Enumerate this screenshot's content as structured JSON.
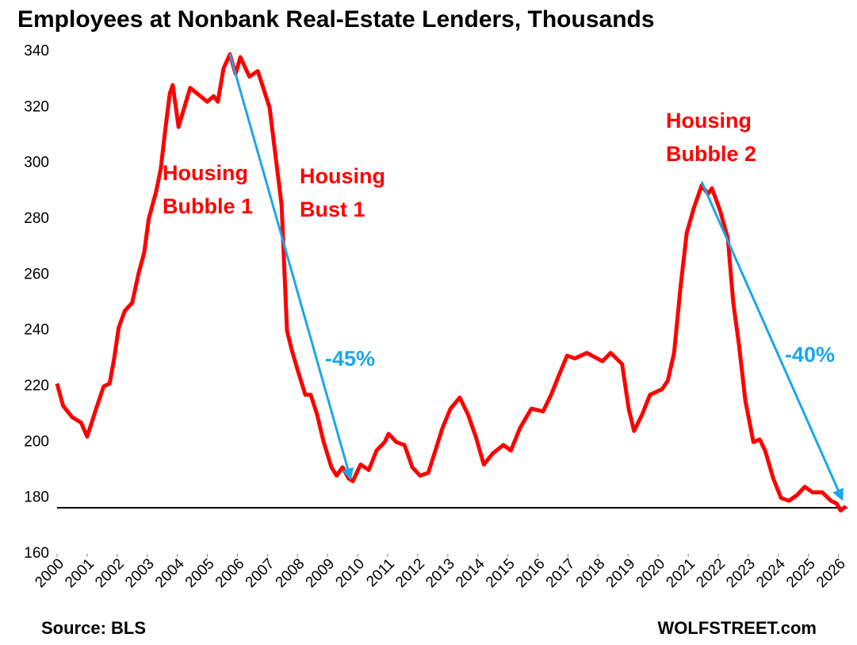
{
  "chart_data": {
    "type": "line",
    "title": "Employees at Nonbank Real-Estate Lenders, Thousands",
    "source": "Source: BLS",
    "credit": "WOLFSTREET.com",
    "annotations": [
      {
        "lines": [
          "Housing",
          "Bubble 1"
        ],
        "color": "#ff0000"
      },
      {
        "lines": [
          "Housing",
          "Bust 1"
        ],
        "color": "#ff0000"
      },
      {
        "lines": [
          "Housing",
          "Bubble 2"
        ],
        "color": "#ff0000"
      },
      {
        "lines": [
          "-45%"
        ],
        "color": "#1aa7e8"
      },
      {
        "lines": [
          "-40%"
        ],
        "color": "#1aa7e8"
      }
    ],
    "series": [
      {
        "color": "#ff0000",
        "x": [
          2000.0,
          2000.2,
          2000.5,
          2000.8,
          2001.0,
          2001.3,
          2001.55,
          2001.75,
          2001.9,
          2002.05,
          2002.25,
          2002.5,
          2002.7,
          2002.9,
          2003.05,
          2003.3,
          2003.45,
          2003.6,
          2003.75,
          2003.85,
          2004.04,
          2004.43,
          2005.0,
          2005.21,
          2005.35,
          2005.54,
          2005.75,
          2005.94,
          2006.1,
          2006.4,
          2006.68,
          2007.07,
          2007.3,
          2007.47,
          2007.65,
          2007.81,
          2008.0,
          2008.26,
          2008.44,
          2008.65,
          2008.87,
          2009.13,
          2009.3,
          2009.5,
          2009.7,
          2009.84,
          2010.1,
          2010.37,
          2010.63,
          2010.9,
          2011.03,
          2011.29,
          2011.56,
          2011.82,
          2012.08,
          2012.35,
          2012.56,
          2012.82,
          2013.09,
          2013.4,
          2013.67,
          2013.93,
          2014.2,
          2014.5,
          2014.85,
          2015.1,
          2015.4,
          2015.78,
          2016.17,
          2016.44,
          2016.7,
          2016.97,
          2017.23,
          2017.63,
          2018.15,
          2018.42,
          2018.8,
          2019.02,
          2019.2,
          2019.47,
          2019.73,
          2020.13,
          2020.32,
          2020.53,
          2020.74,
          2020.95,
          2021.19,
          2021.45,
          2021.66,
          2021.79,
          2022.06,
          2022.32,
          2022.5,
          2022.69,
          2022.9,
          2023.17,
          2023.38,
          2023.56,
          2023.83,
          2024.09,
          2024.35,
          2024.62,
          2024.88,
          2025.14,
          2025.46,
          2025.75,
          2025.94,
          2026.07,
          2026.25
        ],
        "values": [
          221,
          213,
          209,
          207,
          202,
          212,
          220,
          221,
          230,
          241,
          247,
          250,
          260,
          268,
          280,
          290,
          298,
          312,
          325,
          328,
          313,
          327,
          322,
          324,
          322,
          334,
          339,
          332,
          338,
          331,
          333,
          320,
          300,
          285,
          240,
          233,
          226,
          217,
          217,
          210,
          200,
          191,
          188,
          191,
          187,
          186,
          192,
          190,
          197,
          200,
          203,
          200,
          199,
          191,
          188,
          189,
          196,
          205,
          212,
          216,
          210,
          202,
          192,
          196,
          199,
          197,
          205,
          212,
          211,
          217,
          224,
          231,
          230,
          232,
          229,
          232,
          228,
          212,
          204,
          210,
          217,
          219,
          222,
          232,
          255,
          275,
          284,
          292,
          289,
          291,
          283,
          273,
          250,
          235,
          215,
          200,
          201,
          197,
          187,
          180,
          179,
          181,
          184,
          182,
          182,
          179,
          178,
          175.5,
          177
        ]
      }
    ],
    "hline": 176.5,
    "xlim": [
      2000,
      2026.3
    ],
    "xticks": [
      2000,
      2001,
      2002,
      2003,
      2004,
      2005,
      2006,
      2007,
      2008,
      2009,
      2010,
      2011,
      2012,
      2013,
      2014,
      2015,
      2016,
      2017,
      2018,
      2019,
      2020,
      2021,
      2022,
      2023,
      2024,
      2025,
      2026
    ],
    "ylim": [
      160,
      340
    ],
    "yticks": [
      160,
      180,
      200,
      220,
      240,
      260,
      280,
      300,
      320,
      340
    ]
  }
}
